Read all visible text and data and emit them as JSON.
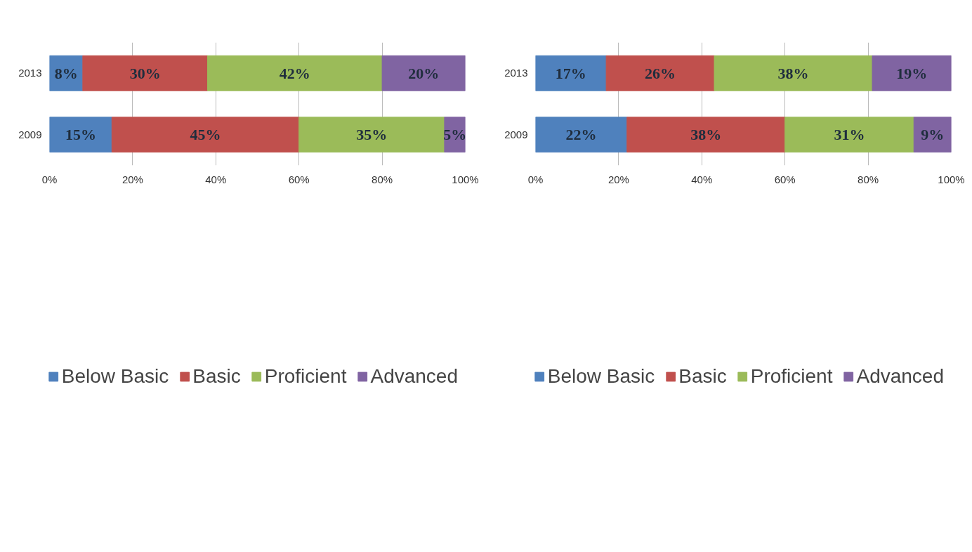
{
  "chart_data": [
    {
      "type": "bar",
      "orientation": "horizontal",
      "stacked": true,
      "categories": [
        "2013",
        "2009"
      ],
      "xlim": [
        0,
        100
      ],
      "xticks": [
        {
          "value": 0,
          "label": "0%"
        },
        {
          "value": 20,
          "label": "20%"
        },
        {
          "value": 40,
          "label": "40%"
        },
        {
          "value": 60,
          "label": "60%"
        },
        {
          "value": 80,
          "label": "80%"
        },
        {
          "value": 100,
          "label": "100%"
        }
      ],
      "grid": "x",
      "legend": "bottom",
      "series": [
        {
          "name": "Below Basic",
          "color": "#4f81bd",
          "values": [
            8,
            15
          ],
          "value_labels": [
            "8%",
            "15%"
          ]
        },
        {
          "name": "Basic",
          "color": "#c0504d",
          "values": [
            30,
            45
          ],
          "value_labels": [
            "30%",
            "45%"
          ]
        },
        {
          "name": "Proficient",
          "color": "#9bbb59",
          "values": [
            42,
            35
          ],
          "value_labels": [
            "42%",
            "35%"
          ]
        },
        {
          "name": "Advanced",
          "color": "#8064a2",
          "values": [
            20,
            5
          ],
          "value_labels": [
            "20%",
            "5%"
          ]
        }
      ]
    },
    {
      "type": "bar",
      "orientation": "horizontal",
      "stacked": true,
      "categories": [
        "2013",
        "2009"
      ],
      "xlim": [
        0,
        100
      ],
      "xticks": [
        {
          "value": 0,
          "label": "0%"
        },
        {
          "value": 20,
          "label": "20%"
        },
        {
          "value": 40,
          "label": "40%"
        },
        {
          "value": 60,
          "label": "60%"
        },
        {
          "value": 80,
          "label": "80%"
        },
        {
          "value": 100,
          "label": "100%"
        }
      ],
      "grid": "x",
      "legend": "bottom",
      "series": [
        {
          "name": "Below Basic",
          "color": "#4f81bd",
          "values": [
            17,
            22
          ],
          "value_labels": [
            "17%",
            "22%"
          ]
        },
        {
          "name": "Basic",
          "color": "#c0504d",
          "values": [
            26,
            38
          ],
          "value_labels": [
            "26%",
            "38%"
          ]
        },
        {
          "name": "Proficient",
          "color": "#9bbb59",
          "values": [
            38,
            31
          ],
          "value_labels": [
            "38%",
            "31%"
          ]
        },
        {
          "name": "Advanced",
          "color": "#8064a2",
          "values": [
            19,
            9
          ],
          "value_labels": [
            "19%",
            "9%"
          ]
        }
      ]
    }
  ]
}
